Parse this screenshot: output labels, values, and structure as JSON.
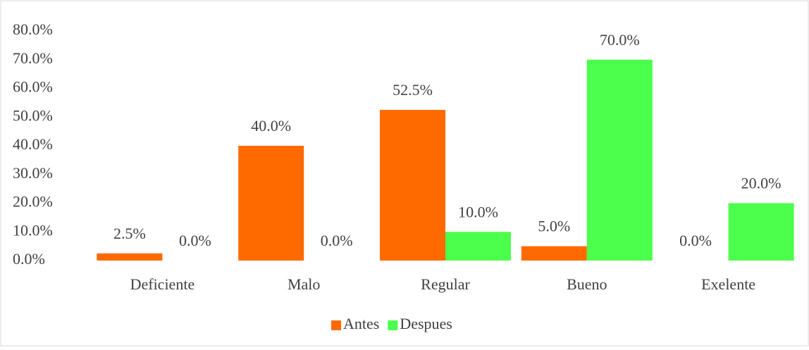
{
  "chart_data": {
    "type": "bar",
    "categories": [
      "Deficiente",
      "Malo",
      "Regular",
      "Bueno",
      "Exelente"
    ],
    "series": [
      {
        "name": "Antes",
        "color": "#ff6a00",
        "values": [
          2.5,
          40.0,
          52.5,
          5.0,
          0.0
        ],
        "value_labels": [
          "2.5%",
          "40.0%",
          "52.5%",
          "5.0%",
          "0.0%"
        ]
      },
      {
        "name": "Despues",
        "color": "#4cff4c",
        "values": [
          0.0,
          0.0,
          10.0,
          70.0,
          20.0
        ],
        "value_labels": [
          "0.0%",
          "0.0%",
          "10.0%",
          "70.0%",
          "20.0%"
        ]
      }
    ],
    "ylim": [
      0,
      80
    ],
    "yticks": [
      {
        "value": 0,
        "label": "0.0%"
      },
      {
        "value": 10,
        "label": "10.0%"
      },
      {
        "value": 20,
        "label": "20.0%"
      },
      {
        "value": 30,
        "label": "30.0%"
      },
      {
        "value": 40,
        "label": "40.0%"
      },
      {
        "value": 50,
        "label": "50.0%"
      },
      {
        "value": 60,
        "label": "60.0%"
      },
      {
        "value": 70,
        "label": "70.0%"
      },
      {
        "value": 80,
        "label": "80.0%"
      }
    ],
    "grid": false,
    "legend": "bottom"
  }
}
